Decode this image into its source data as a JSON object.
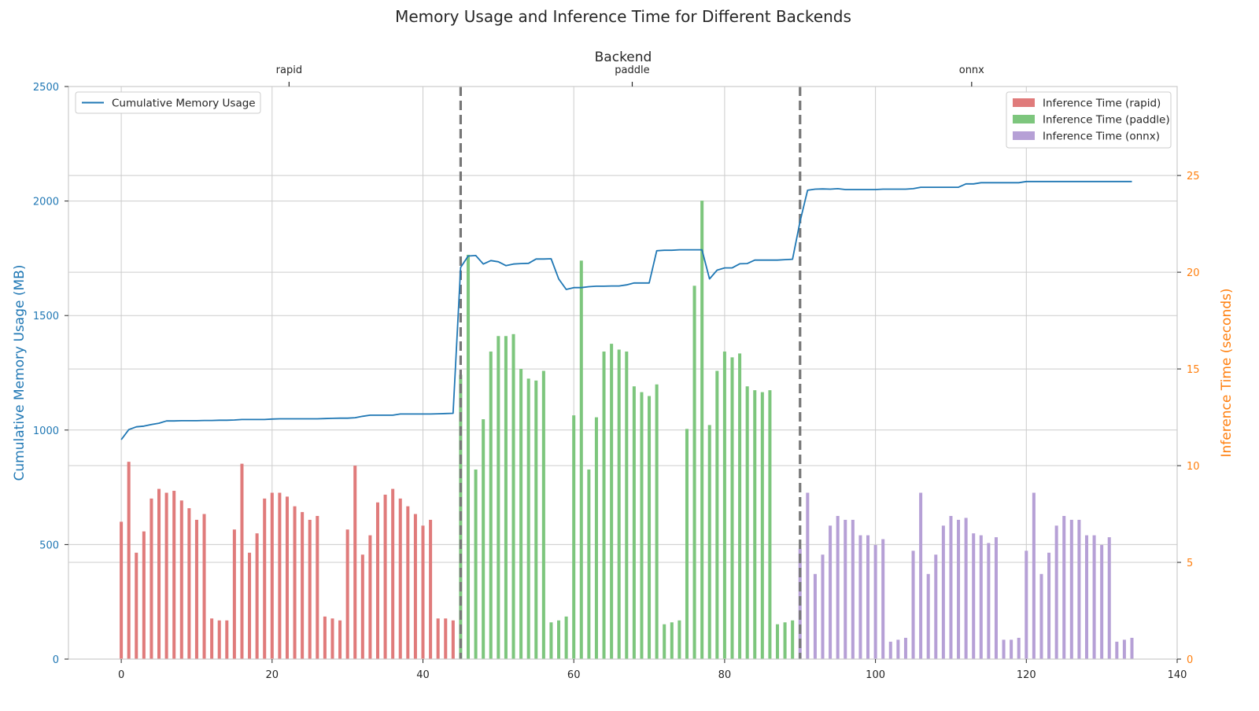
{
  "chart_data": {
    "type": "bar",
    "title": "Memory Usage and Inference Time for Different Backends",
    "top_axis": {
      "label": "Backend",
      "ticks": [
        {
          "label": "rapid",
          "x": 22.25
        },
        {
          "label": "paddle",
          "x": 67.75
        },
        {
          "label": "onnx",
          "x": 112.75
        }
      ]
    },
    "xlim": [
      -7,
      140
    ],
    "xticks": [
      0,
      20,
      40,
      60,
      80,
      100,
      120,
      140
    ],
    "left_axis": {
      "label": "Cumulative Memory Usage (MB)",
      "ylim": [
        0,
        2500
      ],
      "ticks": [
        0,
        500,
        1000,
        1500,
        2000,
        2500
      ],
      "color": "#1f77b4"
    },
    "right_axis": {
      "label": "Inference Time (seconds)",
      "ylim": [
        0,
        29.6
      ],
      "ticks": [
        0,
        5,
        10,
        15,
        20,
        25
      ],
      "color": "#ff7f0e"
    },
    "grid": true,
    "backend_separators": [
      45,
      90
    ],
    "line_series": {
      "name": "Cumulative Memory Usage",
      "color": "#1f77b4",
      "legend_position": "top-left",
      "points": [
        [
          0,
          958
        ],
        [
          1,
          1002
        ],
        [
          2,
          1014
        ],
        [
          3,
          1017
        ],
        [
          4,
          1024
        ],
        [
          5,
          1030
        ],
        [
          6,
          1040
        ],
        [
          7,
          1040
        ],
        [
          8,
          1041
        ],
        [
          9,
          1041
        ],
        [
          10,
          1041
        ],
        [
          11,
          1042
        ],
        [
          12,
          1042
        ],
        [
          13,
          1043
        ],
        [
          14,
          1043
        ],
        [
          15,
          1044
        ],
        [
          16,
          1046
        ],
        [
          17,
          1046
        ],
        [
          18,
          1046
        ],
        [
          19,
          1046
        ],
        [
          20,
          1048
        ],
        [
          21,
          1049
        ],
        [
          22,
          1049
        ],
        [
          23,
          1049
        ],
        [
          24,
          1049
        ],
        [
          25,
          1049
        ],
        [
          26,
          1049
        ],
        [
          27,
          1050
        ],
        [
          28,
          1051
        ],
        [
          29,
          1052
        ],
        [
          30,
          1052
        ],
        [
          31,
          1054
        ],
        [
          32,
          1060
        ],
        [
          33,
          1065
        ],
        [
          34,
          1065
        ],
        [
          35,
          1065
        ],
        [
          36,
          1065
        ],
        [
          37,
          1070
        ],
        [
          38,
          1070
        ],
        [
          39,
          1070
        ],
        [
          40,
          1070
        ],
        [
          41,
          1070
        ],
        [
          42,
          1071
        ],
        [
          43,
          1072
        ],
        [
          44,
          1073
        ],
        [
          45,
          1710
        ],
        [
          46,
          1760
        ],
        [
          47,
          1762
        ],
        [
          48,
          1725
        ],
        [
          49,
          1740
        ],
        [
          50,
          1735
        ],
        [
          51,
          1718
        ],
        [
          52,
          1725
        ],
        [
          53,
          1727
        ],
        [
          54,
          1728
        ],
        [
          55,
          1747
        ],
        [
          56,
          1747
        ],
        [
          57,
          1748
        ],
        [
          58,
          1660
        ],
        [
          59,
          1614
        ],
        [
          60,
          1622
        ],
        [
          61,
          1622
        ],
        [
          62,
          1626
        ],
        [
          63,
          1628
        ],
        [
          64,
          1628
        ],
        [
          65,
          1629
        ],
        [
          66,
          1629
        ],
        [
          67,
          1634
        ],
        [
          68,
          1642
        ],
        [
          69,
          1642
        ],
        [
          70,
          1642
        ],
        [
          71,
          1783
        ],
        [
          72,
          1785
        ],
        [
          73,
          1785
        ],
        [
          74,
          1787
        ],
        [
          75,
          1787
        ],
        [
          76,
          1787
        ],
        [
          77,
          1787
        ],
        [
          78,
          1660
        ],
        [
          79,
          1698
        ],
        [
          80,
          1708
        ],
        [
          81,
          1708
        ],
        [
          82,
          1726
        ],
        [
          83,
          1727
        ],
        [
          84,
          1742
        ],
        [
          85,
          1742
        ],
        [
          86,
          1742
        ],
        [
          87,
          1742
        ],
        [
          88,
          1744
        ],
        [
          89,
          1746
        ],
        [
          90,
          1910
        ],
        [
          91,
          2047
        ],
        [
          92,
          2052
        ],
        [
          93,
          2053
        ],
        [
          94,
          2052
        ],
        [
          95,
          2054
        ],
        [
          96,
          2050
        ],
        [
          97,
          2050
        ],
        [
          98,
          2050
        ],
        [
          99,
          2050
        ],
        [
          100,
          2050
        ],
        [
          101,
          2052
        ],
        [
          102,
          2052
        ],
        [
          103,
          2052
        ],
        [
          104,
          2052
        ],
        [
          105,
          2054
        ],
        [
          106,
          2060
        ],
        [
          107,
          2060
        ],
        [
          108,
          2060
        ],
        [
          109,
          2060
        ],
        [
          110,
          2060
        ],
        [
          111,
          2060
        ],
        [
          112,
          2075
        ],
        [
          113,
          2075
        ],
        [
          114,
          2080
        ],
        [
          115,
          2080
        ],
        [
          116,
          2080
        ],
        [
          117,
          2080
        ],
        [
          118,
          2080
        ],
        [
          119,
          2080
        ],
        [
          120,
          2085
        ],
        [
          121,
          2085
        ],
        [
          122,
          2085
        ],
        [
          123,
          2085
        ],
        [
          124,
          2085
        ],
        [
          125,
          2085
        ],
        [
          126,
          2085
        ],
        [
          127,
          2085
        ],
        [
          128,
          2085
        ],
        [
          129,
          2085
        ],
        [
          130,
          2085
        ],
        [
          131,
          2085
        ],
        [
          132,
          2085
        ],
        [
          133,
          2085
        ],
        [
          134,
          2085
        ]
      ]
    },
    "bar_series": [
      {
        "name": "Inference Time (rapid)",
        "color": "#e07b7b",
        "x_start": 0,
        "values": [
          7.1,
          10.2,
          5.5,
          6.6,
          8.3,
          8.8,
          8.6,
          8.7,
          8.2,
          7.8,
          7.2,
          7.5,
          2.1,
          2.0,
          2.0,
          6.7,
          10.1,
          5.5,
          6.5,
          8.3,
          8.6,
          8.6,
          8.4,
          7.9,
          7.6,
          7.2,
          7.4,
          2.2,
          2.1,
          2.0,
          6.7,
          10.0,
          5.4,
          6.4,
          8.1,
          8.5,
          8.8,
          8.3,
          7.9,
          7.5,
          6.9,
          7.2,
          2.1,
          2.1,
          2.0
        ]
      },
      {
        "name": "Inference Time (paddle)",
        "color": "#7dc67d",
        "x_start": 45,
        "values": [
          14.7,
          20.9,
          9.8,
          12.4,
          15.9,
          16.7,
          16.7,
          16.8,
          15.0,
          14.5,
          14.4,
          14.9,
          1.9,
          2.0,
          2.2,
          12.6,
          20.6,
          9.8,
          12.5,
          15.9,
          16.3,
          16.0,
          15.9,
          14.1,
          13.8,
          13.6,
          14.2,
          1.8,
          1.9,
          2.0,
          11.9,
          19.3,
          23.7,
          12.1,
          14.9,
          15.9,
          15.6,
          15.8,
          14.1,
          13.9,
          13.8,
          13.9,
          1.8,
          1.9,
          2.0
        ]
      },
      {
        "name": "Inference Time (onnx)",
        "color": "#b6a0d6",
        "x_start": 90,
        "values": [
          5.7,
          8.6,
          4.4,
          5.4,
          6.9,
          7.4,
          7.2,
          7.2,
          6.4,
          6.4,
          5.9,
          6.2,
          0.9,
          1.0,
          1.1,
          5.6,
          8.6,
          4.4,
          5.4,
          6.9,
          7.4,
          7.2,
          7.3,
          6.5,
          6.4,
          6.0,
          6.3,
          1.0,
          1.0,
          1.1,
          5.6,
          8.6,
          4.4,
          5.5,
          6.9,
          7.4,
          7.2,
          7.2,
          6.4,
          6.4,
          5.9,
          6.3,
          0.9,
          1.0,
          1.1
        ]
      }
    ]
  }
}
